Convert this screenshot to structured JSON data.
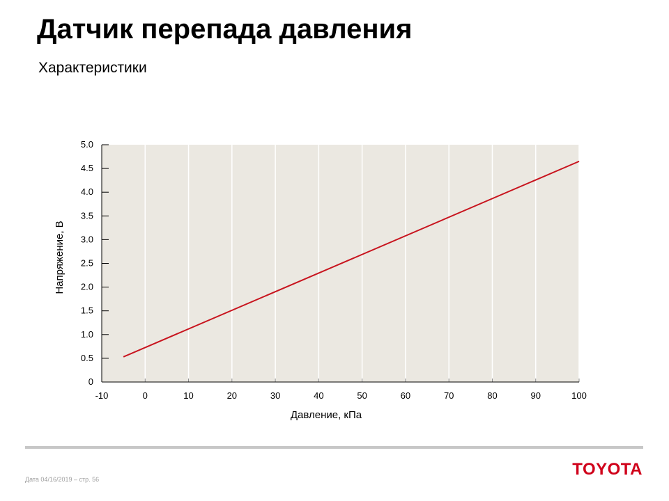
{
  "header": {
    "title": "Датчик перепада давления",
    "subtitle": "Характеристики"
  },
  "footer": {
    "date_page": "Дата 04/16/2019 – стр.  56",
    "logo_text": "TOYOTA"
  },
  "colors": {
    "plot_background": "#ebe8e1",
    "line": "#c8141e",
    "logo": "#d0021b",
    "grid": "#ffffff"
  },
  "chart_data": {
    "type": "line",
    "xlabel": "Давление, кПа",
    "ylabel": "Напряжение, В",
    "xlim": [
      -10,
      100
    ],
    "ylim": [
      0,
      5
    ],
    "x_ticks": [
      "-10",
      "0",
      "10",
      "20",
      "30",
      "40",
      "50",
      "60",
      "70",
      "80",
      "90",
      "100"
    ],
    "y_ticks": [
      "0",
      "0.5",
      "1.0",
      "1.5",
      "2.0",
      "2.5",
      "3.0",
      "3.5",
      "4.0",
      "4.5",
      "5.0"
    ],
    "grid": true,
    "series": [
      {
        "x": [
          -5,
          100
        ],
        "y": [
          0.53,
          4.65
        ]
      }
    ]
  }
}
